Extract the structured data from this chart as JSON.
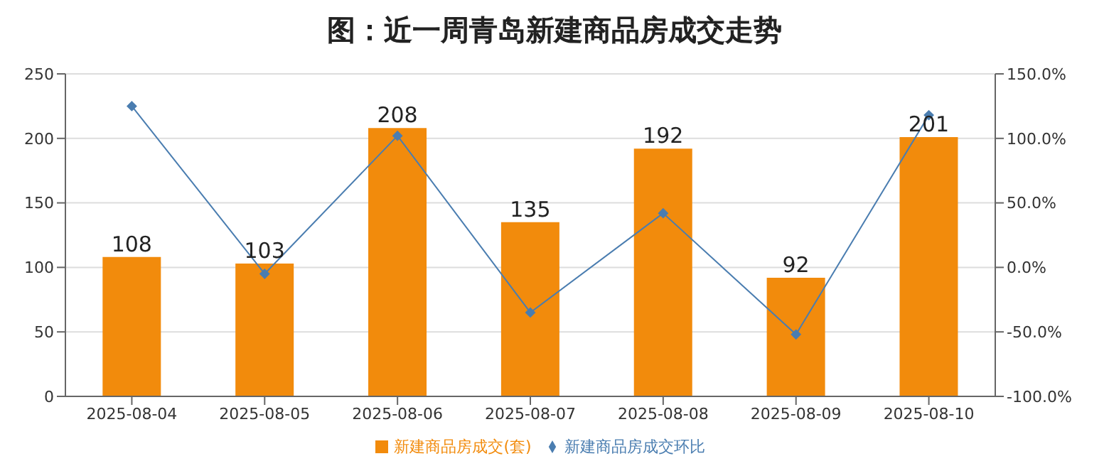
{
  "chart_data": {
    "type": "bar",
    "title": "图：近一周青岛新建商品房成交走势",
    "categories": [
      "2025-08-04",
      "2025-08-05",
      "2025-08-06",
      "2025-08-07",
      "2025-08-08",
      "2025-08-09",
      "2025-08-10"
    ],
    "series": [
      {
        "name": "新建商品房成交(套)",
        "color": "#f28b0c",
        "values": [
          108,
          103,
          208,
          135,
          192,
          92,
          201
        ],
        "value_labels": [
          "108",
          "103",
          "208",
          "135",
          "192",
          "92",
          "201"
        ]
      },
      {
        "name": "新建商品房成交环比",
        "type": "line",
        "axis": "y2",
        "color": "#4a7db0",
        "marker": "diamond",
        "values": [
          125,
          -5,
          102,
          -35,
          42,
          -52,
          118
        ]
      }
    ],
    "ylim": [
      0,
      250
    ],
    "yticks": [
      0,
      50,
      100,
      150,
      200,
      250
    ],
    "y2lim": [
      -100,
      150
    ],
    "y2ticks": [
      {
        "value": -100,
        "label": "-100.0%"
      },
      {
        "value": -50,
        "label": "-50.0%"
      },
      {
        "value": 0,
        "label": "0.0%"
      },
      {
        "value": 50,
        "label": "50.0%"
      },
      {
        "value": 100,
        "label": "100.0%"
      },
      {
        "value": 150,
        "label": "150.0%"
      }
    ],
    "grid": "y",
    "legend": "bottom"
  }
}
